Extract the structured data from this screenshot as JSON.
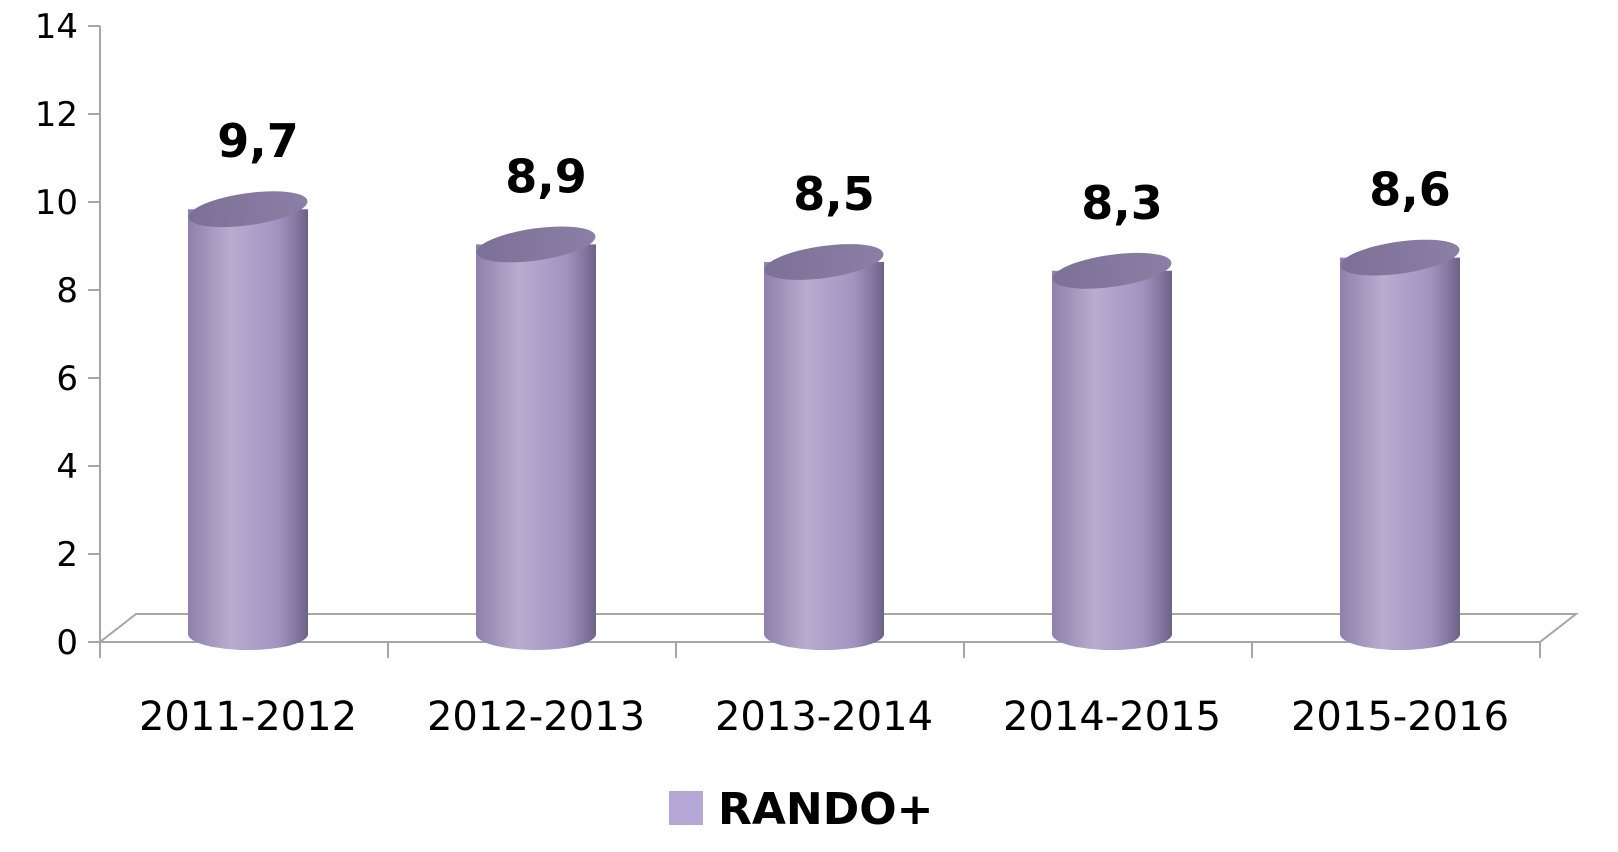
{
  "chart_data": {
    "type": "bar",
    "style": "3d-cylinder",
    "categories": [
      "2011-2012",
      "2012-2013",
      "2013-2014",
      "2014-2015",
      "2015-2016"
    ],
    "series": [
      {
        "name": "RANDO+",
        "values": [
          9.7,
          8.9,
          8.5,
          8.3,
          8.6
        ],
        "color": "#b4a7d6"
      }
    ],
    "data_labels": [
      "9,7",
      "8,9",
      "8,5",
      "8,3",
      "8,6"
    ],
    "yticks": [
      "0",
      "2",
      "4",
      "6",
      "8",
      "10",
      "12",
      "14"
    ],
    "ylim": [
      0,
      14
    ],
    "grid": false,
    "legend_position": "bottom",
    "axis_color": "#a6a6a6"
  }
}
